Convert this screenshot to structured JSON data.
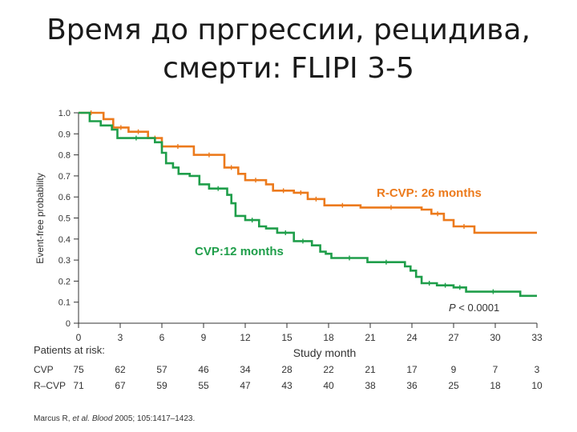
{
  "title": {
    "line1": "Время до пргрессии,  рецидива,",
    "line2": "смерти:   FLIPI 3-5"
  },
  "colors": {
    "cvp": "#1f9e4a",
    "rcvp": "#ec7a1c",
    "axis": "#333333"
  },
  "chart_data": {
    "type": "line",
    "ylabel": "Event-free probability",
    "xlabel": "Study month",
    "xlim": [
      0,
      33
    ],
    "ylim": [
      0,
      1.0
    ],
    "xticks": [
      0,
      3,
      6,
      9,
      12,
      15,
      18,
      21,
      24,
      27,
      30,
      33
    ],
    "yticks": [
      0,
      0.1,
      0.2,
      0.3,
      0.4,
      0.5,
      0.6,
      0.7,
      0.8,
      0.9,
      1.0
    ],
    "ytick_labels": [
      "0",
      "0.1",
      "0.2",
      "0.3",
      "0.4",
      "0.5",
      "0.6",
      "0.7",
      "0.8",
      "0.9",
      "1.0"
    ],
    "series": [
      {
        "name": "R-CVP",
        "color_key": "rcvp",
        "steps": [
          [
            0,
            1.0
          ],
          [
            1.8,
            0.97
          ],
          [
            2.5,
            0.93
          ],
          [
            3.6,
            0.91
          ],
          [
            5.0,
            0.88
          ],
          [
            6.0,
            0.84
          ],
          [
            8.3,
            0.8
          ],
          [
            10.5,
            0.74
          ],
          [
            11.5,
            0.71
          ],
          [
            12.0,
            0.68
          ],
          [
            13.5,
            0.66
          ],
          [
            14.0,
            0.63
          ],
          [
            15.5,
            0.62
          ],
          [
            16.5,
            0.59
          ],
          [
            17.7,
            0.56
          ],
          [
            20.3,
            0.55
          ],
          [
            24.7,
            0.54
          ],
          [
            25.4,
            0.52
          ],
          [
            26.3,
            0.49
          ],
          [
            27.0,
            0.46
          ],
          [
            28.5,
            0.43
          ],
          [
            33.0,
            0.43
          ]
        ]
      },
      {
        "name": "CVP",
        "color_key": "cvp",
        "steps": [
          [
            0,
            1.0
          ],
          [
            0.8,
            0.96
          ],
          [
            1.6,
            0.94
          ],
          [
            2.4,
            0.92
          ],
          [
            2.8,
            0.88
          ],
          [
            5.5,
            0.86
          ],
          [
            6.0,
            0.81
          ],
          [
            6.3,
            0.76
          ],
          [
            6.8,
            0.74
          ],
          [
            7.2,
            0.71
          ],
          [
            8.0,
            0.7
          ],
          [
            8.7,
            0.66
          ],
          [
            9.4,
            0.64
          ],
          [
            10.7,
            0.61
          ],
          [
            11.0,
            0.57
          ],
          [
            11.3,
            0.51
          ],
          [
            12.0,
            0.49
          ],
          [
            13.0,
            0.46
          ],
          [
            13.5,
            0.45
          ],
          [
            14.3,
            0.43
          ],
          [
            15.5,
            0.39
          ],
          [
            16.8,
            0.37
          ],
          [
            17.4,
            0.34
          ],
          [
            17.8,
            0.33
          ],
          [
            18.2,
            0.31
          ],
          [
            20.8,
            0.29
          ],
          [
            23.5,
            0.27
          ],
          [
            23.9,
            0.25
          ],
          [
            24.3,
            0.22
          ],
          [
            24.7,
            0.19
          ],
          [
            25.8,
            0.18
          ],
          [
            27.0,
            0.17
          ],
          [
            27.9,
            0.15
          ],
          [
            31.8,
            0.13
          ],
          [
            33.0,
            0.13
          ]
        ]
      }
    ],
    "annotations": [
      {
        "text": "R-CVP: 26 months",
        "color_key": "rcvp"
      },
      {
        "text": "CVP:12 months",
        "color_key": "cvp"
      },
      {
        "prefix": "P",
        "text": " < 0.0001"
      }
    ],
    "risk_table": {
      "header": "Patients at risk:",
      "rows": [
        {
          "label": "CVP",
          "values": [
            "75",
            "62",
            "57",
            "46",
            "34",
            "28",
            "22",
            "21",
            "17",
            "9",
            "7",
            "3"
          ]
        },
        {
          "label": "R–CVP",
          "values": [
            "71",
            "67",
            "59",
            "55",
            "47",
            "43",
            "40",
            "38",
            "36",
            "25",
            "18",
            "10"
          ]
        }
      ]
    }
  },
  "citation": {
    "authors": "Marcus R, ",
    "etal": "et al.",
    "journal": "Blood",
    "details": " 2005; 105:1417–1423."
  }
}
